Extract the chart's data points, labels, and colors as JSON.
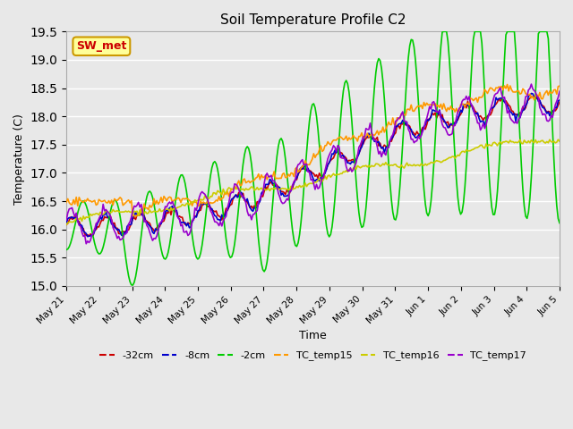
{
  "title": "Soil Temperature Profile C2",
  "xlabel": "Time",
  "ylabel": "Temperature (C)",
  "ylim": [
    15.0,
    19.5
  ],
  "yticks": [
    15.0,
    15.5,
    16.0,
    16.5,
    17.0,
    17.5,
    18.0,
    18.5,
    19.0,
    19.5
  ],
  "bg_color": "#e8e8e8",
  "plot_bg_color": "#e8e8e8",
  "grid_color": "#ffffff",
  "legend_labels": [
    "-32cm",
    "-8cm",
    "-2cm",
    "TC_temp15",
    "TC_temp16",
    "TC_temp17"
  ],
  "line_colors": {
    "d32cm": "#cc0000",
    "d8cm": "#0000cc",
    "d2cm": "#00cc00",
    "tc15": "#ff9900",
    "tc16": "#cccc00",
    "tc17": "#9900cc"
  },
  "annotation_text": "SW_met",
  "annotation_color": "#cc0000",
  "annotation_bg": "#ffff99",
  "annotation_border": "#cc9900",
  "n_points": 350,
  "xtick_labels": [
    "May 21",
    "May 22",
    "May 23",
    "May 24",
    "May 25",
    "May 26",
    "May 27",
    "May 28",
    "May 29",
    "May 30",
    "May 31",
    "Jun 1",
    "Jun 2",
    "Jun 3",
    "Jun 4",
    "Jun 5"
  ]
}
